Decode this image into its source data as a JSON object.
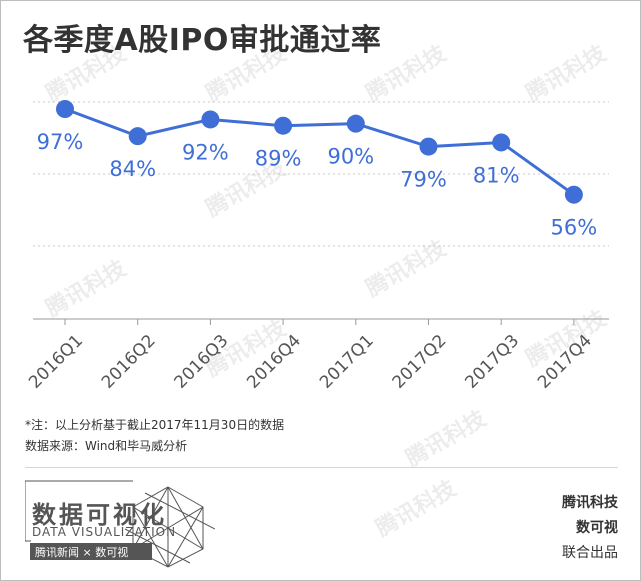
{
  "title": "各季度A股IPO审批通过率",
  "chart_data": {
    "type": "line",
    "title": "各季度A股IPO审批通过率",
    "categories": [
      "2016Q1",
      "2016Q2",
      "2016Q3",
      "2016Q4",
      "2017Q1",
      "2017Q2",
      "2017Q3",
      "2017Q4"
    ],
    "series": [
      {
        "values": [
          97,
          84,
          92,
          89,
          90,
          79,
          81,
          56
        ]
      }
    ],
    "data_labels": [
      "97%",
      "84%",
      "92%",
      "89%",
      "90%",
      "79%",
      "81%",
      "56%"
    ],
    "ylim": [
      0,
      100
    ],
    "grid": true,
    "legend": "none",
    "color": "#3f6fd6"
  },
  "watermark_text": "腾讯科技",
  "footnotes": [
    "*注：以上分析基于截止2017年11月30日的数据",
    "数据来源：Wind和毕马威分析"
  ],
  "logo": {
    "main": "数据可视化",
    "sub": "DATA VISUALIZATION",
    "bar": "腾讯新闻 × 数可视"
  },
  "brand": [
    "腾讯科技",
    "数可视",
    "联合出品"
  ]
}
